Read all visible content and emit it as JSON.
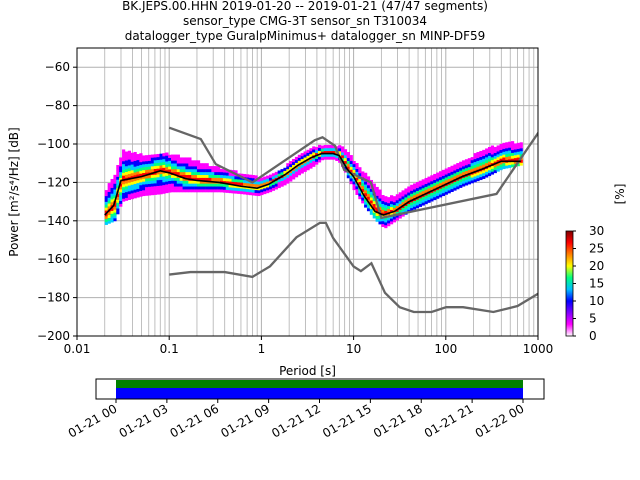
{
  "title_lines": [
    "BK.JEPS.00.HHN   2019-01-20 -- 2019-01-21  (47/47 segments)",
    "sensor_type CMG-3T sensor_sn T310034",
    "datalogger_type GuralpMinimus+ datalogger_sn MINP-DF59"
  ],
  "chart_data": {
    "type": "heatmap",
    "xlabel": "Period [s]",
    "ylabel": "Power [m²/s⁴/Hz] [dB]",
    "xscale": "log",
    "xlim": [
      0.01,
      1000
    ],
    "ylim": [
      -200,
      -50
    ],
    "xticks": [
      0.01,
      0.1,
      1,
      10,
      100,
      1000
    ],
    "xtick_labels": [
      "0.01",
      "0.1",
      "1",
      "10",
      "100",
      "1000"
    ],
    "yticks": [
      -200,
      -180,
      -160,
      -140,
      -120,
      -100,
      -80,
      -60
    ],
    "ytick_labels": [
      "−200",
      "−180",
      "−160",
      "−140",
      "−120",
      "−100",
      "−80",
      "−60"
    ],
    "grid": true,
    "colorbar": {
      "label": "[%]",
      "range": [
        0,
        30
      ],
      "ticks": [
        "0",
        "5",
        "10",
        "15",
        "20",
        "25",
        "30"
      ],
      "colormap": "pqlx",
      "colors": [
        "#ffffff",
        "#ff00ff",
        "#0000ff",
        "#00ccff",
        "#00ff80",
        "#ffff00",
        "#ff8000",
        "#ff0000",
        "#800000"
      ]
    },
    "series": [
      {
        "kind": "noise-model-high",
        "color": "#666666",
        "points": [
          [
            0.1,
            -91.5
          ],
          [
            0.22,
            -97.4
          ],
          [
            0.32,
            -110.5
          ],
          [
            0.8,
            -120
          ],
          [
            3.8,
            -98
          ],
          [
            4.6,
            -96.5
          ],
          [
            6.3,
            -101
          ],
          [
            7.9,
            -113.5
          ],
          [
            15.4,
            -120
          ],
          [
            20,
            -138.5
          ],
          [
            354.8,
            -126
          ],
          [
            10000,
            -80
          ]
        ]
      },
      {
        "kind": "noise-model-low",
        "color": "#666666",
        "points": [
          [
            0.1,
            -168
          ],
          [
            0.17,
            -166.7
          ],
          [
            0.4,
            -166.7
          ],
          [
            0.8,
            -169.2
          ],
          [
            1.24,
            -163.7
          ],
          [
            2.4,
            -148.6
          ],
          [
            4.3,
            -141.1
          ],
          [
            5.0,
            -141.1
          ],
          [
            6.0,
            -149
          ],
          [
            10,
            -163.8
          ],
          [
            12,
            -166.2
          ],
          [
            15.6,
            -162.1
          ],
          [
            21.9,
            -177.5
          ],
          [
            31.6,
            -185
          ],
          [
            45,
            -187.5
          ],
          [
            70,
            -187.5
          ],
          [
            101,
            -185
          ],
          [
            154,
            -185
          ],
          [
            328,
            -187.5
          ],
          [
            600,
            -184.4
          ],
          [
            1000,
            -178
          ]
        ]
      },
      {
        "kind": "mode",
        "color": "#000000",
        "points": [
          [
            0.02,
            -137
          ],
          [
            0.025,
            -132
          ],
          [
            0.03,
            -119
          ],
          [
            0.05,
            -117
          ],
          [
            0.08,
            -114
          ],
          [
            0.1,
            -115
          ],
          [
            0.15,
            -118
          ],
          [
            0.2,
            -119
          ],
          [
            0.35,
            -120
          ],
          [
            0.6,
            -122
          ],
          [
            0.9,
            -123
          ],
          [
            1.2,
            -121
          ],
          [
            1.8,
            -116
          ],
          [
            2.5,
            -111
          ],
          [
            3.5,
            -107
          ],
          [
            4.5,
            -105
          ],
          [
            6,
            -105
          ],
          [
            7,
            -106
          ],
          [
            8.5,
            -113
          ],
          [
            10,
            -117
          ],
          [
            13,
            -127
          ],
          [
            17,
            -135
          ],
          [
            21,
            -137
          ],
          [
            28,
            -135
          ],
          [
            40,
            -130
          ],
          [
            60,
            -126
          ],
          [
            100,
            -121
          ],
          [
            150,
            -117
          ],
          [
            250,
            -113
          ],
          [
            400,
            -109
          ],
          [
            650,
            -109
          ]
        ]
      }
    ],
    "density_band": {
      "periods": [
        0.02,
        0.025,
        0.03,
        0.05,
        0.08,
        0.1,
        0.15,
        0.2,
        0.35,
        0.6,
        0.9,
        1.2,
        1.8,
        2.5,
        3.5,
        4.5,
        6,
        7,
        8.5,
        10,
        13,
        17,
        21,
        28,
        40,
        60,
        100,
        150,
        250,
        400,
        650
      ],
      "upper": [
        -124,
        -116,
        -104,
        -106,
        -105,
        -106,
        -108,
        -110,
        -113,
        -116,
        -118,
        -117,
        -112,
        -106,
        -102,
        -101,
        -101,
        -102,
        -105,
        -110,
        -116,
        -123,
        -128,
        -128,
        -122,
        -118,
        -113,
        -109,
        -104,
        -100,
        -100
      ],
      "lower": [
        -142,
        -140,
        -130,
        -127,
        -126,
        -125,
        -125,
        -125,
        -125,
        -126,
        -127,
        -125,
        -121,
        -116,
        -112,
        -108,
        -108,
        -110,
        -118,
        -125,
        -133,
        -140,
        -144,
        -140,
        -135,
        -131,
        -126,
        -122,
        -118,
        -113,
        -111
      ]
    },
    "time_coverage": {
      "tick_labels": [
        "01-21 00",
        "01-21 03",
        "01-21 06",
        "01-21 09",
        "01-21 12",
        "01-21 15",
        "01-21 18",
        "01-21 21",
        "01-22 00"
      ],
      "bands": [
        {
          "kind": "data-availability",
          "color": "#008000"
        },
        {
          "kind": "psd-segments",
          "color": "#0000ff"
        }
      ]
    }
  }
}
